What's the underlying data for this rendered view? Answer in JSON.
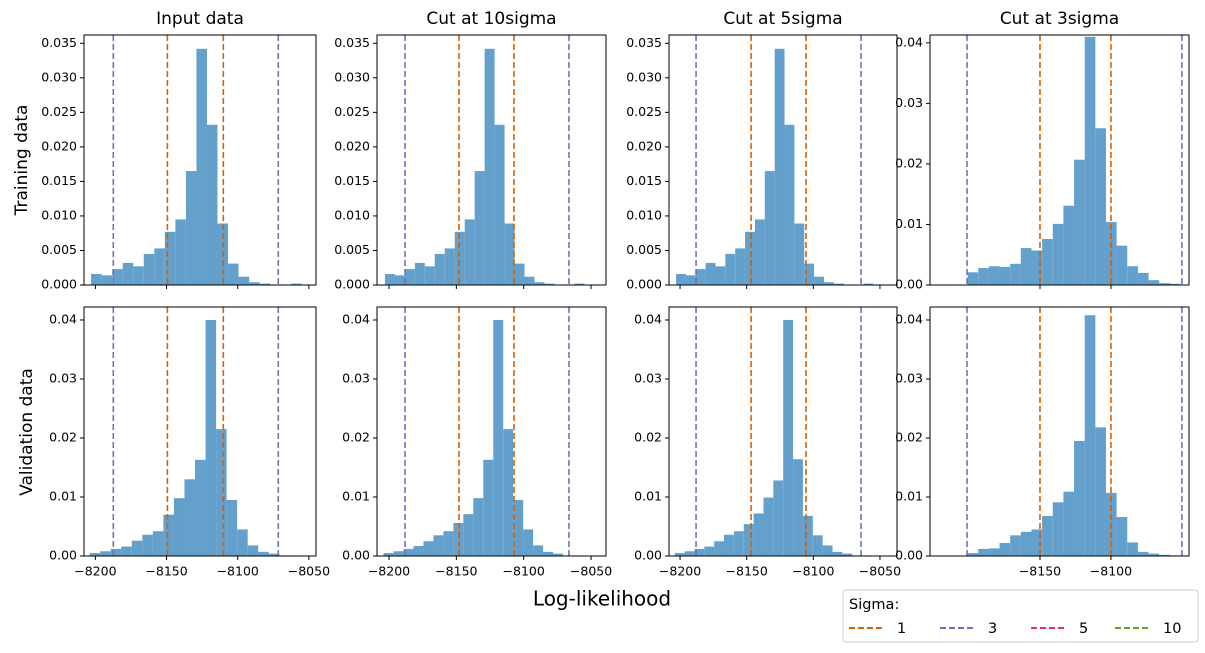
{
  "chart_data": [
    {
      "type": "histogram",
      "title": "Input data",
      "color": "#63a0cb",
      "bins": [
        -8203,
        -8195.6,
        -8188.2,
        -8180.8,
        -8173.4,
        -8166,
        -8158.6,
        -8151.2,
        -8143.8,
        -8136.4,
        -8129,
        -8121.6,
        -8114.2,
        -8106.8,
        -8099.4,
        -8092,
        -8084.6,
        -8077.2,
        -8069.8,
        -8062.4,
        -8055,
        -8047.6
      ],
      "values": [
        0.0016,
        0.0014,
        0.0023,
        0.0032,
        0.0027,
        0.0045,
        0.0053,
        0.0077,
        0.0095,
        0.0165,
        0.0342,
        0.0232,
        0.0089,
        0.0031,
        0.0012,
        0.0004,
        0.0002,
        0,
        0,
        0.0002,
        0
      ],
      "xlim": [
        -8208,
        -8045
      ],
      "ylim": [
        0,
        0.0362
      ],
      "yticks": [
        {
          "value": 0,
          "label": "0.000"
        },
        {
          "value": 0.005,
          "label": "0.005"
        },
        {
          "value": 0.01,
          "label": "0.010"
        },
        {
          "value": 0.015,
          "label": "0.015"
        },
        {
          "value": 0.02,
          "label": "0.020"
        },
        {
          "value": 0.025,
          "label": "0.025"
        },
        {
          "value": 0.03,
          "label": "0.030"
        },
        {
          "value": 0.035,
          "label": "0.035"
        }
      ],
      "vlines": [
        {
          "value": -8149.4,
          "color": "#d95f02"
        },
        {
          "value": -8110.1,
          "color": "#d95f02"
        },
        {
          "value": -8187.4,
          "color": "#7570b3"
        },
        {
          "value": -8071.5,
          "color": "#7570b3"
        }
      ]
    },
    {
      "type": "histogram",
      "title": "Cut at 10sigma",
      "color": "#63a0cb",
      "bins": [
        -8203,
        -8195.6,
        -8188.2,
        -8180.8,
        -8173.4,
        -8166,
        -8158.6,
        -8151.2,
        -8143.8,
        -8136.4,
        -8129,
        -8121.6,
        -8114.2,
        -8106.8,
        -8099.4,
        -8092,
        -8084.6,
        -8077.2,
        -8069.8,
        -8062.4,
        -8055,
        -8047.6
      ],
      "values": [
        0.0016,
        0.0014,
        0.0023,
        0.0032,
        0.0027,
        0.0045,
        0.0053,
        0.0077,
        0.0095,
        0.0165,
        0.0342,
        0.0232,
        0.0089,
        0.0031,
        0.0012,
        0.0004,
        0.0002,
        0,
        0,
        0.0002,
        0
      ],
      "xlim": [
        -8208.9,
        -8038.9
      ],
      "ylim": [
        0,
        0.0362
      ],
      "yticks": [
        {
          "value": 0,
          "label": "0.000"
        },
        {
          "value": 0.005,
          "label": "0.005"
        },
        {
          "value": 0.01,
          "label": "0.010"
        },
        {
          "value": 0.015,
          "label": "0.015"
        },
        {
          "value": 0.02,
          "label": "0.020"
        },
        {
          "value": 0.025,
          "label": "0.025"
        },
        {
          "value": 0.03,
          "label": "0.030"
        },
        {
          "value": 0.035,
          "label": "0.035"
        }
      ],
      "vlines": [
        {
          "value": -8148,
          "color": "#d95f02"
        },
        {
          "value": -8107.2,
          "color": "#d95f02"
        },
        {
          "value": -8188.1,
          "color": "#7570b3"
        },
        {
          "value": -8066.4,
          "color": "#7570b3"
        }
      ]
    },
    {
      "type": "histogram",
      "title": "Cut at 5sigma",
      "color": "#63a0cb",
      "bins": [
        -8203,
        -8195.6,
        -8188.2,
        -8180.8,
        -8173.4,
        -8166,
        -8158.6,
        -8151.2,
        -8143.8,
        -8136.4,
        -8129,
        -8121.6,
        -8114.2,
        -8106.8,
        -8099.4,
        -8092,
        -8084.6,
        -8077.2,
        -8069.8,
        -8062.4,
        -8055,
        -8047.6
      ],
      "values": [
        0.0016,
        0.0014,
        0.0023,
        0.0032,
        0.0027,
        0.0045,
        0.0053,
        0.0077,
        0.0095,
        0.0165,
        0.0342,
        0.0232,
        0.0089,
        0.0031,
        0.0012,
        0.0004,
        0.0002,
        0,
        0,
        0.0002,
        0
      ],
      "xlim": [
        -8208.3,
        -8037.2
      ],
      "ylim": [
        0,
        0.0362
      ],
      "yticks": [
        {
          "value": 0,
          "label": "0.000"
        },
        {
          "value": 0.005,
          "label": "0.005"
        },
        {
          "value": 0.01,
          "label": "0.010"
        },
        {
          "value": 0.015,
          "label": "0.015"
        },
        {
          "value": 0.02,
          "label": "0.020"
        },
        {
          "value": 0.025,
          "label": "0.025"
        },
        {
          "value": 0.03,
          "label": "0.030"
        },
        {
          "value": 0.035,
          "label": "0.035"
        }
      ],
      "vlines": [
        {
          "value": -8146.7,
          "color": "#d95f02"
        },
        {
          "value": -8105.5,
          "color": "#d95f02"
        },
        {
          "value": -8188,
          "color": "#7570b3"
        },
        {
          "value": -8064.2,
          "color": "#7570b3"
        }
      ]
    },
    {
      "type": "histogram",
      "title": "Cut at 3sigma",
      "color": "#63a0cb",
      "bins": [
        -8201,
        -8193.5,
        -8186,
        -8178.5,
        -8171,
        -8163.5,
        -8156,
        -8148.5,
        -8141,
        -8133.5,
        -8126,
        -8118.5,
        -8111,
        -8103.5,
        -8096,
        -8088.5,
        -8081,
        -8073.5,
        -8066,
        -8058.5,
        -8051
      ],
      "values": [
        0.0021,
        0.0028,
        0.0031,
        0.003,
        0.0035,
        0.0061,
        0.0057,
        0.0076,
        0.0101,
        0.0131,
        0.0207,
        0.041,
        0.0259,
        0.0104,
        0.0065,
        0.0031,
        0.002,
        0.0008,
        0.0003,
        0.0002
      ],
      "xlim": [
        -8227.5,
        -8045
      ],
      "ylim": [
        0,
        0.0413
      ],
      "yticks": [
        {
          "value": 0,
          "label": "0.00"
        },
        {
          "value": 0.01,
          "label": "0.01"
        },
        {
          "value": 0.02,
          "label": "0.02"
        },
        {
          "value": 0.03,
          "label": "0.03"
        },
        {
          "value": 0.04,
          "label": "0.04"
        }
      ],
      "vlines": [
        {
          "value": -8150,
          "color": "#d95f02"
        },
        {
          "value": -8100,
          "color": "#d95f02"
        },
        {
          "value": -8201.4,
          "color": "#7570b3"
        },
        {
          "value": -8050,
          "color": "#7570b3"
        }
      ]
    },
    {
      "type": "histogram",
      "color": "#63a0cb",
      "bins": [
        -8204,
        -8196.6,
        -8189.2,
        -8181.8,
        -8174.4,
        -8167,
        -8159.6,
        -8152.2,
        -8144.8,
        -8137.4,
        -8130,
        -8122.6,
        -8115.2,
        -8107.8,
        -8100.4,
        -8093,
        -8085.6,
        -8078.2,
        -8070.8,
        -8063.4,
        -8056,
        -8048.6
      ],
      "values": [
        0.0005,
        0.0008,
        0.0012,
        0.0016,
        0.0026,
        0.0036,
        0.0042,
        0.007,
        0.0098,
        0.013,
        0.0163,
        0.04,
        0.0215,
        0.0095,
        0.0045,
        0.0018,
        0.0007,
        0.0004,
        0.0001,
        0.0001,
        0
      ],
      "xlim": [
        -8208,
        -8045
      ],
      "ylim": [
        0,
        0.0422
      ],
      "xticks": [
        {
          "value": -8200,
          "label": "−8200"
        },
        {
          "value": -8150,
          "label": "−8150"
        },
        {
          "value": -8100,
          "label": "−8100"
        },
        {
          "value": -8050,
          "label": "−8050"
        }
      ],
      "yticks": [
        {
          "value": 0,
          "label": "0.00"
        },
        {
          "value": 0.01,
          "label": "0.01"
        },
        {
          "value": 0.02,
          "label": "0.02"
        },
        {
          "value": 0.03,
          "label": "0.03"
        },
        {
          "value": 0.04,
          "label": "0.04"
        }
      ],
      "vlines": [
        {
          "value": -8149.4,
          "color": "#d95f02"
        },
        {
          "value": -8110.1,
          "color": "#d95f02"
        },
        {
          "value": -8187.4,
          "color": "#7570b3"
        },
        {
          "value": -8071.5,
          "color": "#7570b3"
        }
      ]
    },
    {
      "type": "histogram",
      "color": "#63a0cb",
      "bins": [
        -8204,
        -8196.6,
        -8189.2,
        -8181.8,
        -8174.4,
        -8167,
        -8159.6,
        -8152.2,
        -8144.8,
        -8137.4,
        -8130,
        -8122.6,
        -8115.2,
        -8107.8,
        -8100.4,
        -8093,
        -8085.6,
        -8078.2,
        -8070.8,
        -8063.4,
        -8056,
        -8048.6
      ],
      "values": [
        0.0005,
        0.0008,
        0.0012,
        0.0017,
        0.0025,
        0.0035,
        0.0042,
        0.0056,
        0.0071,
        0.0098,
        0.0163,
        0.04,
        0.0215,
        0.0095,
        0.0045,
        0.0018,
        0.0007,
        0.0004,
        0.0001,
        0.0001,
        0
      ],
      "xlim": [
        -8208.9,
        -8038.9
      ],
      "ylim": [
        0,
        0.0422
      ],
      "xticks": [
        {
          "value": -8200,
          "label": "−8200"
        },
        {
          "value": -8150,
          "label": "−8150"
        },
        {
          "value": -8100,
          "label": "−8100"
        },
        {
          "value": -8050,
          "label": "−8050"
        }
      ],
      "yticks": [
        {
          "value": 0,
          "label": "0.00"
        },
        {
          "value": 0.01,
          "label": "0.01"
        },
        {
          "value": 0.02,
          "label": "0.02"
        },
        {
          "value": 0.03,
          "label": "0.03"
        },
        {
          "value": 0.04,
          "label": "0.04"
        }
      ],
      "vlines": [
        {
          "value": -8148,
          "color": "#d95f02"
        },
        {
          "value": -8107.2,
          "color": "#d95f02"
        },
        {
          "value": -8188.1,
          "color": "#7570b3"
        },
        {
          "value": -8066.4,
          "color": "#7570b3"
        }
      ]
    },
    {
      "type": "histogram",
      "color": "#63a0cb",
      "bins": [
        -8204,
        -8196.6,
        -8189.2,
        -8181.8,
        -8174.4,
        -8167,
        -8159.6,
        -8152.2,
        -8144.8,
        -8137.4,
        -8130,
        -8122.6,
        -8115.2,
        -8107.8,
        -8100.4,
        -8093,
        -8085.6,
        -8078.2,
        -8070.8,
        -8063.4,
        -8056,
        -8048.6
      ],
      "values": [
        0.0005,
        0.0008,
        0.0012,
        0.0016,
        0.0025,
        0.0036,
        0.0042,
        0.0054,
        0.0072,
        0.0099,
        0.0128,
        0.04,
        0.0164,
        0.0068,
        0.0035,
        0.0018,
        0.0007,
        0.0004,
        0.0001,
        0.0001,
        0
      ],
      "xlim": [
        -8208.3,
        -8037.2
      ],
      "ylim": [
        0,
        0.0422
      ],
      "xticks": [
        {
          "value": -8200,
          "label": "−8200"
        },
        {
          "value": -8150,
          "label": "−8150"
        },
        {
          "value": -8100,
          "label": "−8100"
        },
        {
          "value": -8050,
          "label": "−8050"
        }
      ],
      "yticks": [
        {
          "value": 0,
          "label": "0.00"
        },
        {
          "value": 0.01,
          "label": "0.01"
        },
        {
          "value": 0.02,
          "label": "0.02"
        },
        {
          "value": 0.03,
          "label": "0.03"
        },
        {
          "value": 0.04,
          "label": "0.04"
        }
      ],
      "vlines": [
        {
          "value": -8146.7,
          "color": "#d95f02"
        },
        {
          "value": -8105.5,
          "color": "#d95f02"
        },
        {
          "value": -8188,
          "color": "#7570b3"
        },
        {
          "value": -8064.2,
          "color": "#7570b3"
        }
      ]
    },
    {
      "type": "histogram",
      "color": "#63a0cb",
      "bins": [
        -8201,
        -8193.5,
        -8186,
        -8178.5,
        -8171,
        -8163.5,
        -8156,
        -8148.5,
        -8141,
        -8133.5,
        -8126,
        -8118.5,
        -8111,
        -8103.5,
        -8096,
        -8088.5,
        -8081,
        -8073.5,
        -8066,
        -8058.5,
        -8051
      ],
      "values": [
        0.0005,
        0.0012,
        0.0013,
        0.0022,
        0.0035,
        0.0041,
        0.0045,
        0.0068,
        0.0091,
        0.0109,
        0.0195,
        0.0408,
        0.0218,
        0.0107,
        0.0066,
        0.0023,
        0.0007,
        0.0004,
        0.0002,
        0.0001
      ],
      "xlim": [
        -8227.5,
        -8045
      ],
      "ylim": [
        0,
        0.0422
      ],
      "xticks": [
        {
          "value": -8150,
          "label": "−8150"
        },
        {
          "value": -8100,
          "label": "−8100"
        }
      ],
      "yticks": [
        {
          "value": 0,
          "label": "0.00"
        },
        {
          "value": 0.01,
          "label": "0.01"
        },
        {
          "value": 0.02,
          "label": "0.02"
        },
        {
          "value": 0.03,
          "label": "0.03"
        },
        {
          "value": 0.04,
          "label": "0.04"
        }
      ],
      "vlines": [
        {
          "value": -8150,
          "color": "#d95f02"
        },
        {
          "value": -8100,
          "color": "#d95f02"
        },
        {
          "value": -8201.4,
          "color": "#7570b3"
        },
        {
          "value": -8050,
          "color": "#7570b3"
        }
      ]
    }
  ],
  "row_labels": [
    "Training data",
    "Validation data"
  ],
  "x_label": "Log-likelihood",
  "legend": {
    "title": "Sigma:",
    "items": [
      {
        "name": "1",
        "color": "#d95f02"
      },
      {
        "name": "3",
        "color": "#7570b3"
      },
      {
        "name": "5",
        "color": "#e7298a"
      },
      {
        "name": "10",
        "color": "#66a61e"
      }
    ]
  }
}
